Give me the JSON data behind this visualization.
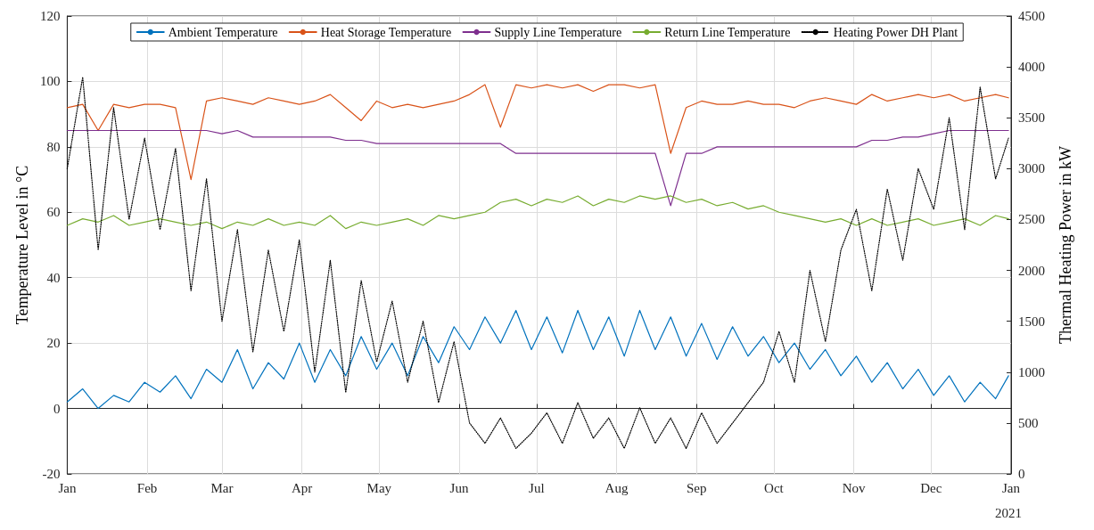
{
  "chart_data": {
    "type": "line",
    "ylabel": "Temperature Level in °C",
    "y2label": "Thermal Heating Power in kW",
    "annotations": [
      "2021"
    ],
    "x": [
      "2020-01-01",
      "2020-01-07",
      "2020-01-13",
      "2020-01-19",
      "2020-01-25",
      "2020-01-31",
      "2020-02-06",
      "2020-02-12",
      "2020-02-18",
      "2020-02-24",
      "2020-03-01",
      "2020-03-07",
      "2020-03-13",
      "2020-03-19",
      "2020-03-25",
      "2020-03-31",
      "2020-04-06",
      "2020-04-12",
      "2020-04-18",
      "2020-04-24",
      "2020-04-30",
      "2020-05-06",
      "2020-05-12",
      "2020-05-18",
      "2020-05-24",
      "2020-05-30",
      "2020-06-05",
      "2020-06-11",
      "2020-06-17",
      "2020-06-23",
      "2020-06-29",
      "2020-07-05",
      "2020-07-11",
      "2020-07-17",
      "2020-07-23",
      "2020-07-29",
      "2020-08-04",
      "2020-08-10",
      "2020-08-16",
      "2020-08-22",
      "2020-08-28",
      "2020-09-03",
      "2020-09-09",
      "2020-09-15",
      "2020-09-21",
      "2020-09-27",
      "2020-10-03",
      "2020-10-09",
      "2020-10-15",
      "2020-10-21",
      "2020-10-27",
      "2020-11-02",
      "2020-11-08",
      "2020-11-14",
      "2020-11-20",
      "2020-11-26",
      "2020-12-02",
      "2020-12-08",
      "2020-12-14",
      "2020-12-20",
      "2020-12-26",
      "2020-12-31"
    ],
    "xlim": [
      "2020-01-01",
      "2021-01-01"
    ],
    "xticks": [
      {
        "value": "2020-01-01",
        "label": "Jan"
      },
      {
        "value": "2020-02-01",
        "label": "Feb"
      },
      {
        "value": "2020-03-01",
        "label": "Mar"
      },
      {
        "value": "2020-04-01",
        "label": "Apr"
      },
      {
        "value": "2020-05-01",
        "label": "May"
      },
      {
        "value": "2020-06-01",
        "label": "Jun"
      },
      {
        "value": "2020-07-01",
        "label": "Jul"
      },
      {
        "value": "2020-08-01",
        "label": "Aug"
      },
      {
        "value": "2020-09-01",
        "label": "Sep"
      },
      {
        "value": "2020-10-01",
        "label": "Oct"
      },
      {
        "value": "2020-11-01",
        "label": "Nov"
      },
      {
        "value": "2020-12-01",
        "label": "Dec"
      },
      {
        "value": "2021-01-01",
        "label": "Jan"
      }
    ],
    "ylim": [
      -20,
      120
    ],
    "yticks": [
      -20,
      0,
      20,
      40,
      60,
      80,
      100,
      120
    ],
    "y2lim": [
      0,
      4500
    ],
    "y2ticks": [
      0,
      500,
      1000,
      1500,
      2000,
      2500,
      3000,
      3500,
      4000,
      4500
    ],
    "grid": true,
    "legend": "top",
    "marker": "none",
    "line_style": "solid",
    "series": [
      {
        "name": "Ambient Temperature",
        "color": "#0072bd",
        "values": [
          2,
          6,
          0,
          4,
          2,
          8,
          5,
          10,
          3,
          12,
          8,
          18,
          6,
          14,
          9,
          20,
          8,
          18,
          10,
          22,
          12,
          20,
          10,
          22,
          14,
          25,
          18,
          28,
          20,
          30,
          18,
          28,
          17,
          30,
          18,
          28,
          16,
          30,
          18,
          28,
          16,
          26,
          15,
          25,
          16,
          22,
          14,
          20,
          12,
          18,
          10,
          16,
          8,
          14,
          6,
          12,
          4,
          10,
          2,
          8,
          3,
          10
        ]
      },
      {
        "name": "Heat Storage Temperature",
        "color": "#d95319",
        "values": [
          92,
          93,
          85,
          93,
          92,
          93,
          93,
          92,
          70,
          94,
          95,
          94,
          93,
          95,
          94,
          93,
          94,
          96,
          92,
          88,
          94,
          92,
          93,
          92,
          93,
          94,
          96,
          99,
          86,
          99,
          98,
          99,
          98,
          99,
          97,
          99,
          99,
          98,
          99,
          78,
          92,
          94,
          93,
          93,
          94,
          93,
          93,
          92,
          94,
          95,
          94,
          93,
          96,
          94,
          95,
          96,
          95,
          96,
          94,
          95,
          96,
          95
        ]
      },
      {
        "name": "Supply Line Temperature",
        "color": "#7e2f8e",
        "values": [
          85,
          85,
          85,
          85,
          85,
          85,
          85,
          85,
          85,
          85,
          84,
          85,
          83,
          83,
          83,
          83,
          83,
          83,
          82,
          82,
          81,
          81,
          81,
          81,
          81,
          81,
          81,
          81,
          81,
          78,
          78,
          78,
          78,
          78,
          78,
          78,
          78,
          78,
          78,
          62,
          78,
          78,
          80,
          80,
          80,
          80,
          80,
          80,
          80,
          80,
          80,
          80,
          82,
          82,
          83,
          83,
          84,
          85,
          85,
          85,
          85,
          85
        ]
      },
      {
        "name": "Return Line Temperature",
        "color": "#77ac30",
        "values": [
          56,
          58,
          57,
          59,
          56,
          57,
          58,
          57,
          56,
          57,
          55,
          57,
          56,
          58,
          56,
          57,
          56,
          59,
          55,
          57,
          56,
          57,
          58,
          56,
          59,
          58,
          59,
          60,
          63,
          64,
          62,
          64,
          63,
          65,
          62,
          64,
          63,
          65,
          64,
          65,
          63,
          64,
          62,
          63,
          61,
          62,
          60,
          59,
          58,
          57,
          58,
          56,
          58,
          56,
          57,
          58,
          56,
          57,
          58,
          56,
          59,
          58
        ]
      },
      {
        "name": "Heating Power DH Plant",
        "color": "#000000",
        "axis": "y2",
        "line_style": "dotted",
        "values": [
          3000,
          3900,
          2200,
          3600,
          2500,
          3300,
          2400,
          3200,
          1800,
          2900,
          1500,
          2400,
          1200,
          2200,
          1400,
          2300,
          1000,
          2100,
          800,
          1900,
          1100,
          1700,
          900,
          1500,
          700,
          1300,
          500,
          300,
          550,
          250,
          400,
          600,
          300,
          700,
          350,
          550,
          250,
          650,
          300,
          550,
          250,
          600,
          300,
          500,
          700,
          900,
          1400,
          900,
          2000,
          1300,
          2200,
          2600,
          1800,
          2800,
          2100,
          3000,
          2600,
          3500,
          2400,
          3800,
          2900,
          3300
        ]
      }
    ]
  }
}
